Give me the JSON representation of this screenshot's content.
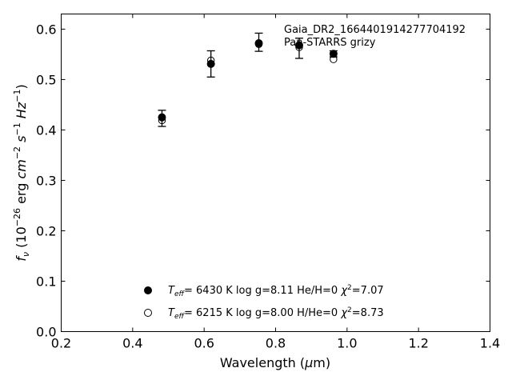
{
  "chart_data": {
    "type": "scatter",
    "title": "",
    "xlabel_main": "Wavelength (",
    "xlabel_mu": "μ",
    "xlabel_tail": "m)",
    "ylabel": "",
    "xlim": [
      0.2,
      1.4
    ],
    "ylim": [
      0.0,
      0.63
    ],
    "xticks": [
      0.2,
      0.4,
      0.6,
      0.8,
      1.0,
      1.2,
      1.4
    ],
    "xtick_labels": [
      "0.2",
      "0.4",
      "0.6",
      "0.8",
      "1.0",
      "1.2",
      "1.4"
    ],
    "yticks": [
      0.0,
      0.1,
      0.2,
      0.3,
      0.4,
      0.5,
      0.6
    ],
    "ytick_labels": [
      "0.0",
      "0.1",
      "0.2",
      "0.3",
      "0.4",
      "0.5",
      "0.6"
    ],
    "grid": false,
    "annotations": [
      "Gaia_DR2_1664401914277704192",
      "Pan-STARRS grizy"
    ],
    "observed": {
      "x": [
        0.482,
        0.619,
        0.753,
        0.866,
        0.962
      ],
      "y": [
        0.423,
        0.531,
        0.574,
        0.562,
        0.551
      ],
      "yerr": [
        0.016,
        0.026,
        0.018,
        0.02,
        0.006
      ]
    },
    "series": [
      {
        "marker": "filled-circle",
        "legend": {
          "teff": "6430 K",
          "logg": "log g=8.11",
          "comp": "He/H=0",
          "chi2": "=7.07"
        },
        "x": [
          0.482,
          0.619,
          0.753,
          0.866,
          0.962
        ],
        "y": [
          0.425,
          0.531,
          0.572,
          0.568,
          0.551
        ]
      },
      {
        "marker": "open-circle",
        "legend": {
          "teff": "6215 K",
          "logg": "log g=8.00",
          "comp": "H/He=0",
          "chi2": "=8.73"
        },
        "x": [
          0.482,
          0.619,
          0.753,
          0.866,
          0.962
        ],
        "y": [
          0.419,
          0.538,
          0.57,
          0.564,
          0.54
        ]
      }
    ]
  }
}
